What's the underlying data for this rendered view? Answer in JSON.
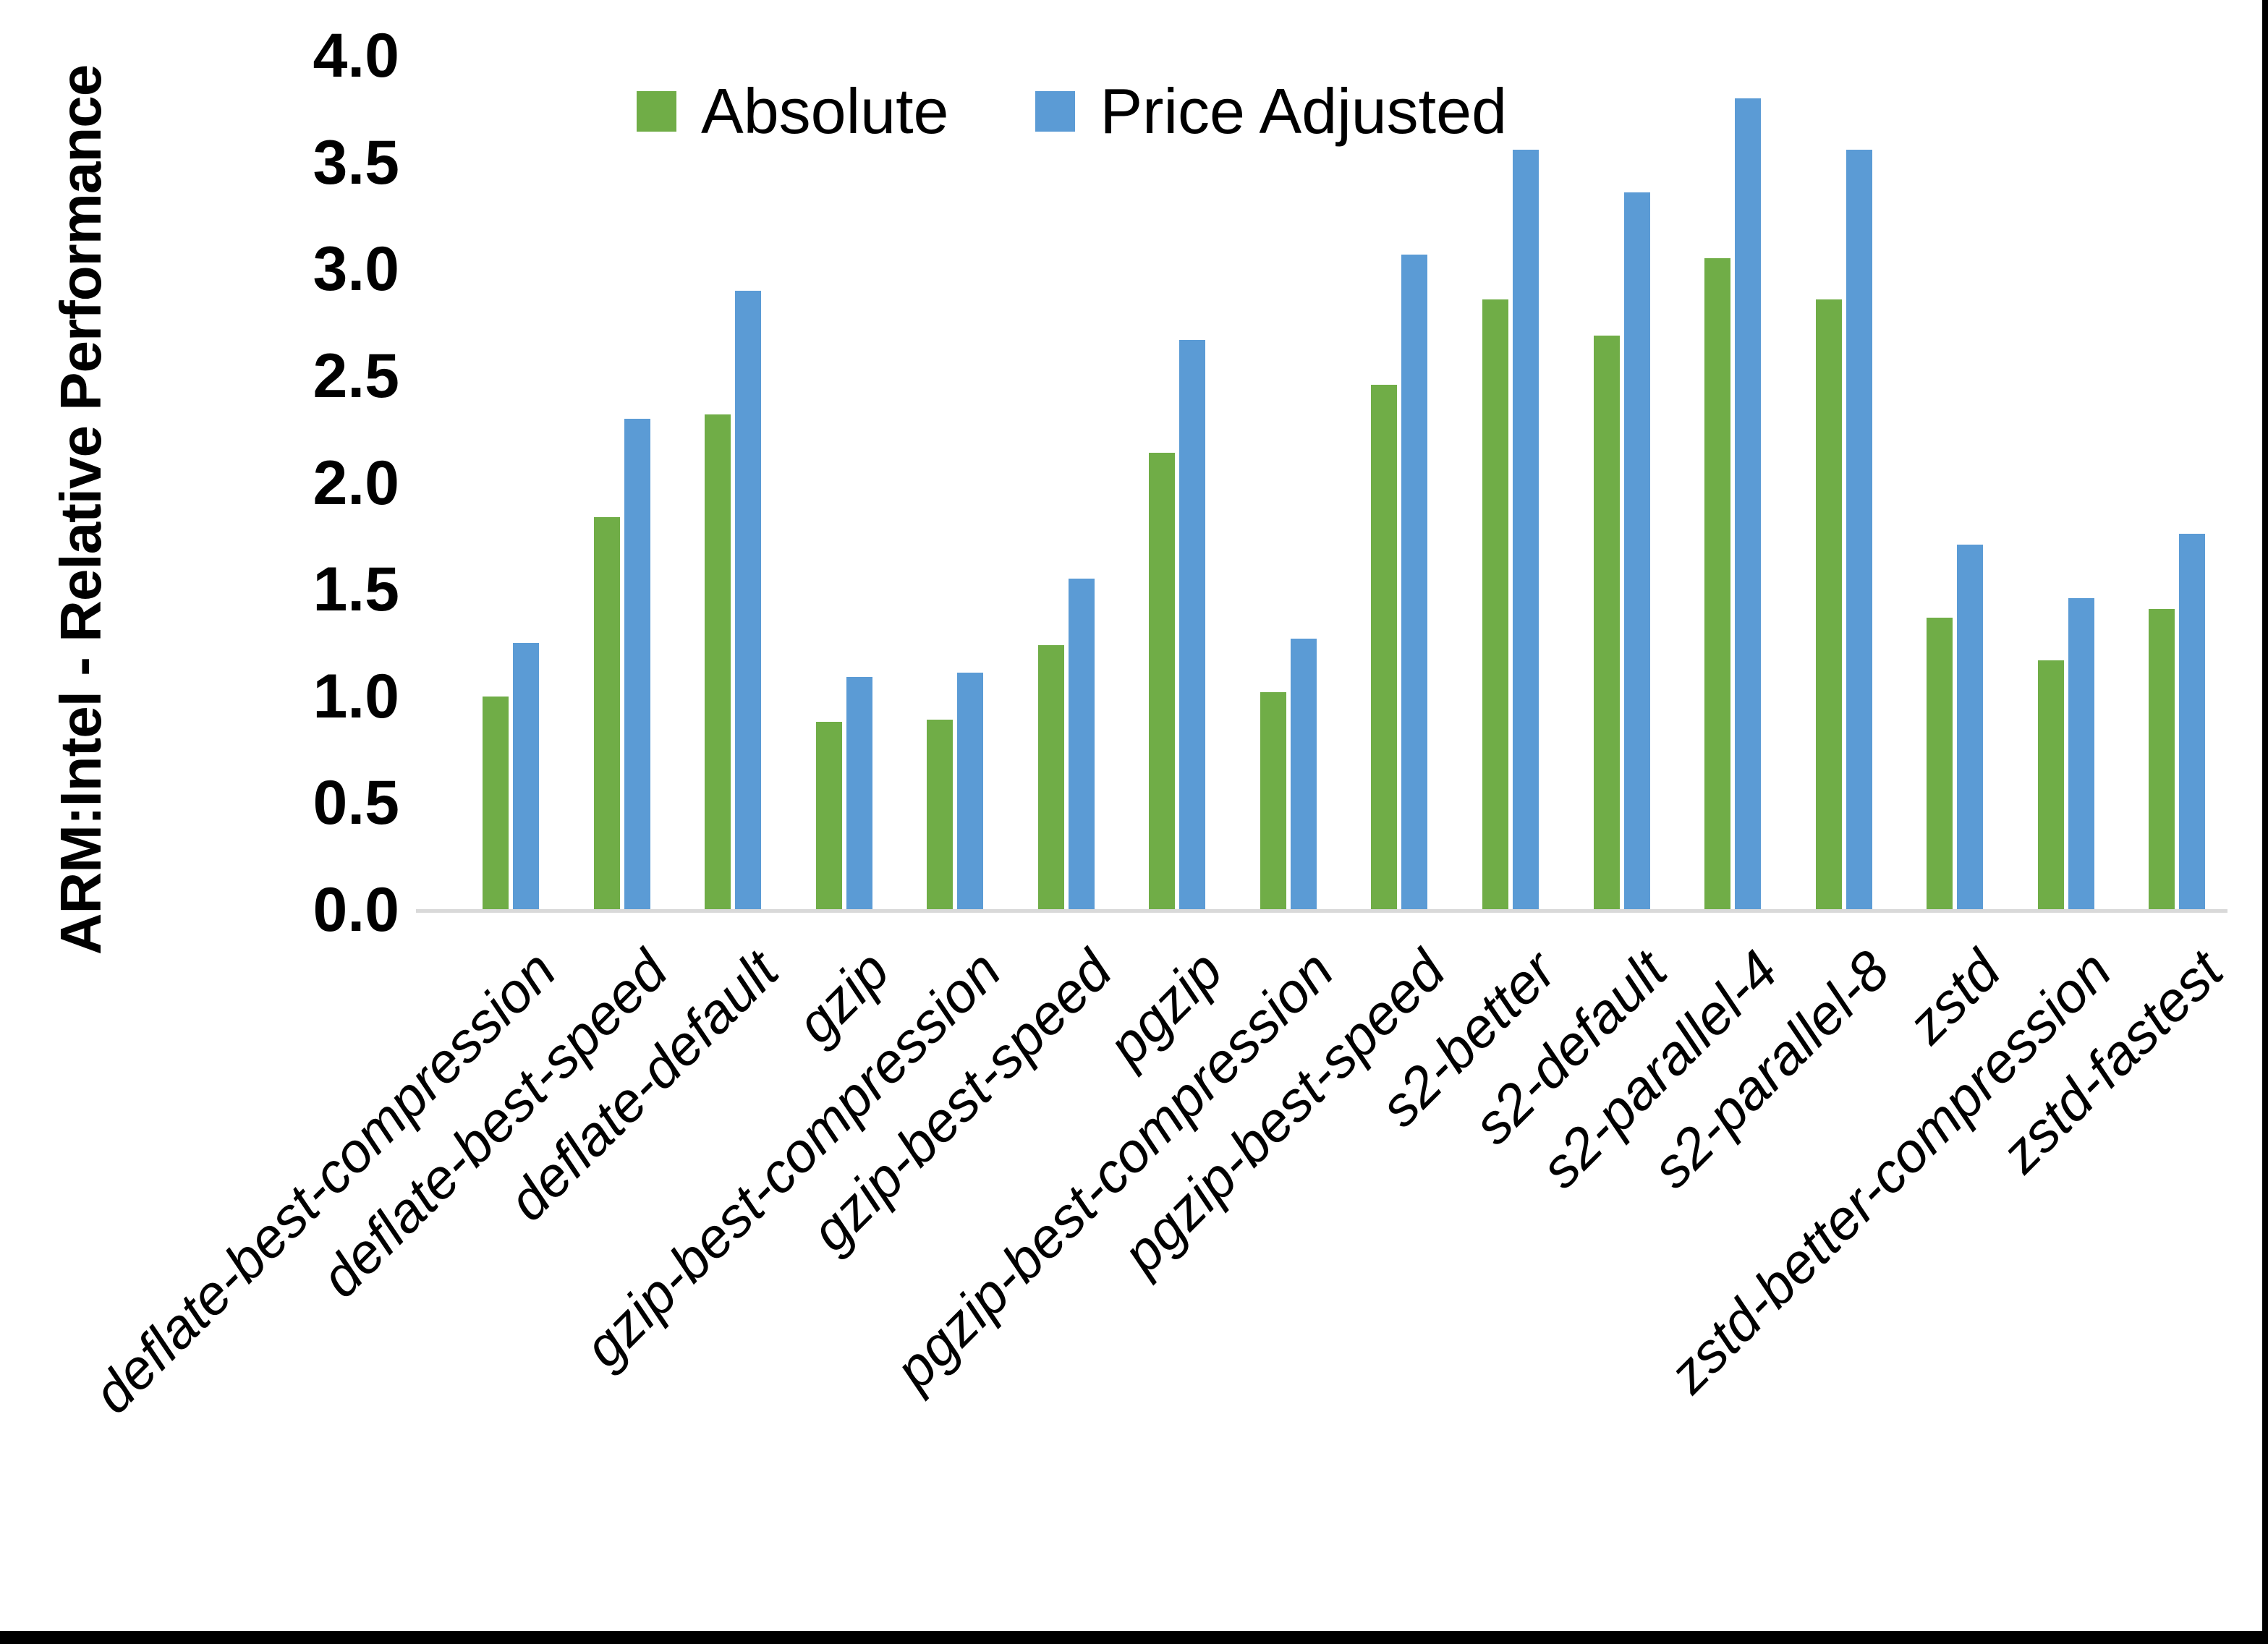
{
  "chart_data": {
    "type": "bar",
    "title": "",
    "ylabel": "ARM:Intel - Relative Performance",
    "xlabel": "",
    "ylim": [
      0.0,
      4.0
    ],
    "ytick_step": 0.5,
    "yticks": [
      "4.0",
      "3.5",
      "3.0",
      "2.5",
      "2.0",
      "1.5",
      "1.0",
      "0.5",
      "0.0"
    ],
    "grid": false,
    "legend_position": "top-center",
    "axis_line_color": "#d9d9d9",
    "categories": [
      "deflate-best-compression",
      "deflate-best-speed",
      "deflate-default",
      "gzip",
      "gzip-best-compression",
      "gzip-best-speed",
      "pgzip",
      "pgzip-best-compression",
      "pgzip-best-speed",
      "s2-better",
      "s2-default",
      "s2-parallel-4",
      "s2-parallel-8",
      "zstd",
      "zstd-better-compression",
      "zstd-fastest"
    ],
    "series": [
      {
        "name": "Absolute",
        "color": "#70AD47",
        "values": [
          1.0,
          1.84,
          2.32,
          0.88,
          0.89,
          1.24,
          2.14,
          1.02,
          2.46,
          2.86,
          2.69,
          3.05,
          2.86,
          1.37,
          1.17,
          1.41
        ]
      },
      {
        "name": "Price Adjusted",
        "color": "#5B9BD5",
        "values": [
          1.25,
          2.3,
          2.9,
          1.09,
          1.11,
          1.55,
          2.67,
          1.27,
          3.07,
          3.56,
          3.36,
          3.8,
          3.56,
          1.71,
          1.46,
          1.76
        ]
      }
    ]
  }
}
